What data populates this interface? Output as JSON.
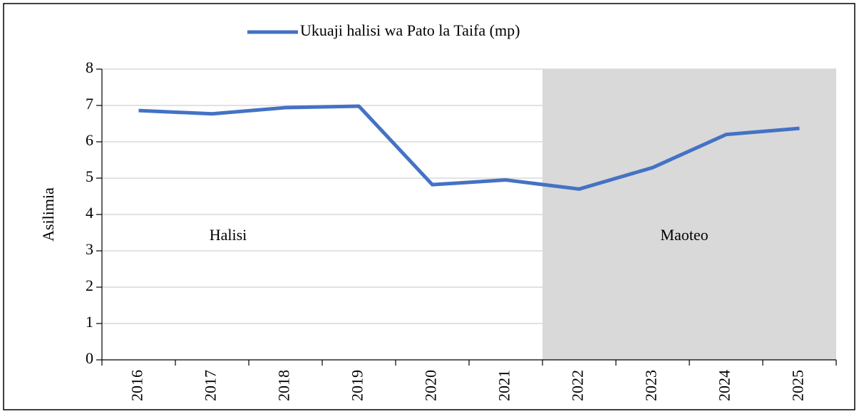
{
  "chart_data": {
    "type": "line",
    "legend_position": "top",
    "series": [
      {
        "name": "Ukuaji halisi wa Pato la Taifa (mp)",
        "color": "#4472c4",
        "values": [
          6.86,
          6.77,
          6.94,
          6.98,
          4.82,
          4.95,
          4.7,
          5.29,
          6.2,
          6.37
        ]
      }
    ],
    "categories": [
      "2016",
      "2017",
      "2018",
      "2019",
      "2020",
      "2021",
      "2022",
      "2023",
      "2024",
      "2025"
    ],
    "ylabel": "Asilimia",
    "ylim": [
      0,
      8
    ],
    "yticks": [
      0,
      1,
      2,
      3,
      4,
      5,
      6,
      7,
      8
    ],
    "grid": true,
    "shade": {
      "from": "2022",
      "color": "#d9d9d9"
    },
    "annotations": [
      "Halisi",
      "Maoteo"
    ]
  }
}
